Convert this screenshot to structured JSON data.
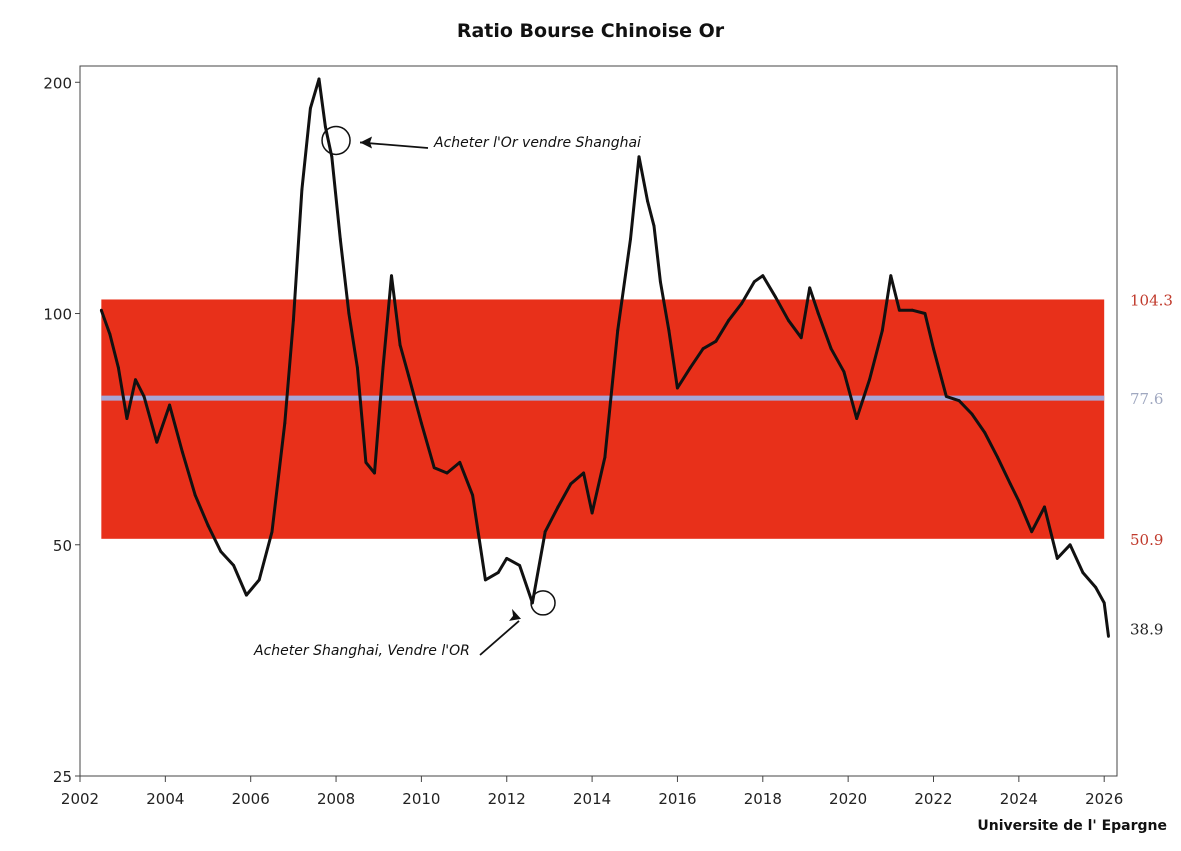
{
  "chart_data": {
    "type": "line",
    "title": "Ratio Bourse Chinoise Or",
    "source": "Universite de l' Epargne",
    "y_scale": "log",
    "xlim": [
      2002,
      2026.3
    ],
    "ylim": [
      25,
      210
    ],
    "x_ticks": [
      2002,
      2004,
      2006,
      2008,
      2010,
      2012,
      2014,
      2016,
      2018,
      2020,
      2022,
      2024,
      2026
    ],
    "y_ticks": [
      25,
      50,
      100,
      200
    ],
    "band": {
      "low": 50.9,
      "high": 104.3,
      "mid": 77.6,
      "color": "#e8301a",
      "mid_color": "#a6a6d6"
    },
    "right_labels": [
      {
        "value": 104.3,
        "text": "104.3",
        "color": "#c0392b"
      },
      {
        "value": 77.6,
        "text": "77.6",
        "color": "#a0a8c0"
      },
      {
        "value": 50.9,
        "text": "50.9",
        "color": "#c0392b"
      },
      {
        "value": 38.9,
        "text": "38.9",
        "color": "#222222"
      }
    ],
    "series": [
      {
        "name": "Ratio",
        "color": "#111111",
        "x": [
          2002.5,
          2002.7,
          2002.9,
          2003.1,
          2003.3,
          2003.5,
          2003.8,
          2004.1,
          2004.4,
          2004.7,
          2005.0,
          2005.3,
          2005.6,
          2005.9,
          2006.2,
          2006.5,
          2006.8,
          2007.0,
          2007.2,
          2007.4,
          2007.6,
          2007.75,
          2007.9,
          2008.1,
          2008.3,
          2008.5,
          2008.7,
          2008.9,
          2009.1,
          2009.3,
          2009.5,
          2009.7,
          2010.0,
          2010.3,
          2010.6,
          2010.9,
          2011.2,
          2011.5,
          2011.8,
          2012.0,
          2012.3,
          2012.6,
          2012.9,
          2013.2,
          2013.5,
          2013.8,
          2014.0,
          2014.3,
          2014.6,
          2014.9,
          2015.1,
          2015.3,
          2015.45,
          2015.6,
          2015.8,
          2016.0,
          2016.3,
          2016.6,
          2016.9,
          2017.2,
          2017.5,
          2017.8,
          2018.0,
          2018.3,
          2018.6,
          2018.9,
          2019.1,
          2019.3,
          2019.6,
          2019.9,
          2020.2,
          2020.5,
          2020.8,
          2021.0,
          2021.2,
          2021.5,
          2021.8,
          2022.0,
          2022.3,
          2022.6,
          2022.9,
          2023.2,
          2023.5,
          2023.8,
          2024.0,
          2024.3,
          2024.6,
          2024.9,
          2025.2,
          2025.5,
          2025.8,
          2026.0,
          2026.1
        ],
        "values": [
          101,
          94,
          85,
          73,
          82,
          78,
          68,
          76,
          66,
          58,
          53,
          49,
          47,
          43,
          45,
          52,
          72,
          98,
          145,
          185,
          202,
          175,
          160,
          125,
          100,
          85,
          64,
          62,
          85,
          112,
          91,
          83,
          72,
          63,
          62,
          64,
          58,
          45,
          46,
          48,
          47,
          42,
          52,
          56,
          60,
          62,
          55,
          65,
          95,
          125,
          160,
          140,
          130,
          110,
          95,
          80,
          85,
          90,
          92,
          98,
          103,
          110,
          112,
          105,
          98,
          93,
          108,
          100,
          90,
          84,
          73,
          82,
          95,
          112,
          101,
          101,
          100,
          90,
          78,
          77,
          74,
          70,
          65,
          60,
          57,
          52,
          56,
          48,
          50,
          46,
          44,
          42,
          38
        ]
      }
    ],
    "annotations": [
      {
        "text": "Acheter l'Or vendre Shanghai",
        "x": 2008.0,
        "y": 168
      },
      {
        "text": "Acheter Shanghai, Vendre l'OR",
        "x": 2012.85,
        "y": 42
      }
    ]
  }
}
